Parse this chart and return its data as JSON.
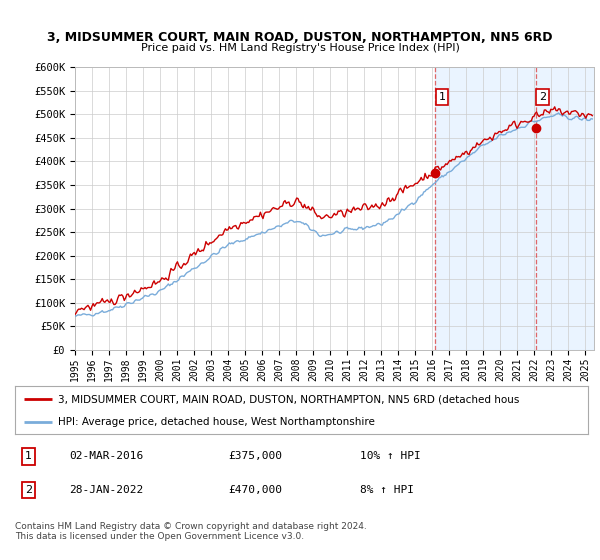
{
  "title1": "3, MIDSUMMER COURT, MAIN ROAD, DUSTON, NORTHAMPTON, NN5 6RD",
  "title2": "Price paid vs. HM Land Registry's House Price Index (HPI)",
  "ylabel_ticks": [
    "£0",
    "£50K",
    "£100K",
    "£150K",
    "£200K",
    "£250K",
    "£300K",
    "£350K",
    "£400K",
    "£450K",
    "£500K",
    "£550K",
    "£600K"
  ],
  "ylim": [
    0,
    600000
  ],
  "xlim_start": 1995.0,
  "xlim_end": 2025.5,
  "sale1_date": 2016.17,
  "sale1_price": 375000,
  "sale2_date": 2022.08,
  "sale2_price": 470000,
  "legend_line1": "3, MIDSUMMER COURT, MAIN ROAD, DUSTON, NORTHAMPTON, NN5 6RD (detached hous",
  "legend_line2": "HPI: Average price, detached house, West Northamptonshire",
  "annot1_date": "02-MAR-2016",
  "annot1_price": "£375,000",
  "annot1_hpi": "10% ↑ HPI",
  "annot2_date": "28-JAN-2022",
  "annot2_price": "£470,000",
  "annot2_hpi": "8% ↑ HPI",
  "footer": "Contains HM Land Registry data © Crown copyright and database right 2024.\nThis data is licensed under the Open Government Licence v3.0.",
  "line_color_red": "#cc0000",
  "line_color_blue": "#7aacda",
  "background_color": "#ffffff",
  "grid_color": "#cccccc",
  "shade_color": "#ddeeff",
  "dashed_color": "#dd4444"
}
